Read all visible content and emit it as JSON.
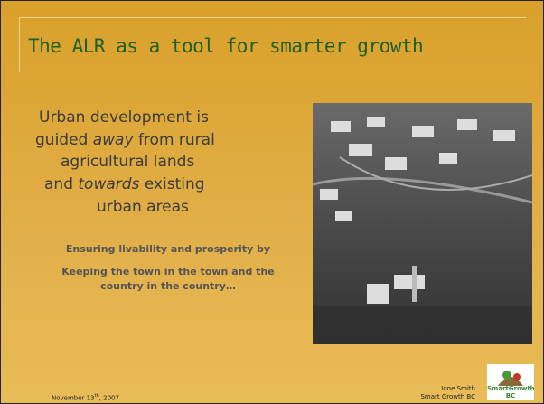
{
  "title": "The ALR as a tool for smarter growth",
  "body": [
    [
      "Urban development is"
    ],
    [
      "guided ",
      "away",
      " from rural"
    ],
    [
      "agricultural lands"
    ],
    [
      "and ",
      "towards",
      " existing"
    ],
    [
      "urban areas"
    ]
  ],
  "subtext": [
    "Ensuring livability and prosperity by",
    "Keeping the town in the town and the",
    "country in the country…"
  ],
  "footer": {
    "date": [
      "November 13",
      "th",
      ", 2007"
    ],
    "author": "Ione Smith",
    "organization": "Smart Growth BC",
    "logo": "SmartGrowth BC"
  }
}
